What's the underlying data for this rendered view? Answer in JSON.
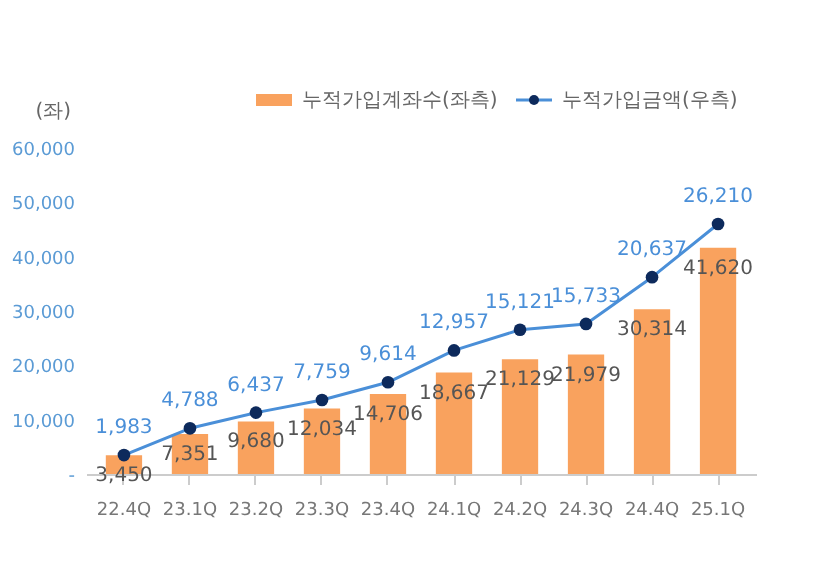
{
  "chart_data": {
    "type": "bar",
    "ylabel": "(좌)",
    "categories": [
      "22.4Q",
      "23.1Q",
      "23.2Q",
      "23.3Q",
      "23.4Q",
      "24.1Q",
      "24.2Q",
      "24.3Q",
      "24.4Q",
      "25.1Q"
    ],
    "series": [
      {
        "name": "누적가입계좌수(좌측)",
        "color": "#f9a25e",
        "values": [
          3450,
          7351,
          9680,
          12034,
          14706,
          18667,
          21129,
          21979,
          30314,
          41620
        ],
        "value_labels": [
          "3,450",
          "7,351",
          "9,680",
          "12,034",
          "14,706",
          "18,667",
          "21,129",
          "21,979",
          "30,314",
          "41,620"
        ]
      },
      {
        "name": "누적가입금액(우측)",
        "type": "line",
        "axis": "y2",
        "color": "#4a8fd8",
        "marker": "circle",
        "values": [
          1983,
          4788,
          6437,
          7759,
          9614,
          12957,
          15121,
          15733,
          20637,
          26210
        ],
        "value_labels": [
          "1,983",
          "4,788",
          "6,437",
          "7,759",
          "9,614",
          "12,957",
          "15,121",
          "15,733",
          "20,637",
          "26,210"
        ]
      }
    ],
    "ylim": [
      0,
      60000
    ],
    "yticks": [
      {
        "value": 0,
        "label": "-"
      },
      {
        "value": 10000,
        "label": "10,000"
      },
      {
        "value": 20000,
        "label": "20,000"
      },
      {
        "value": 30000,
        "label": "30,000"
      },
      {
        "value": 40000,
        "label": "40,000"
      },
      {
        "value": 50000,
        "label": "50,000"
      },
      {
        "value": 60000,
        "label": "60,000"
      }
    ],
    "grid": false,
    "legend": "top right"
  }
}
